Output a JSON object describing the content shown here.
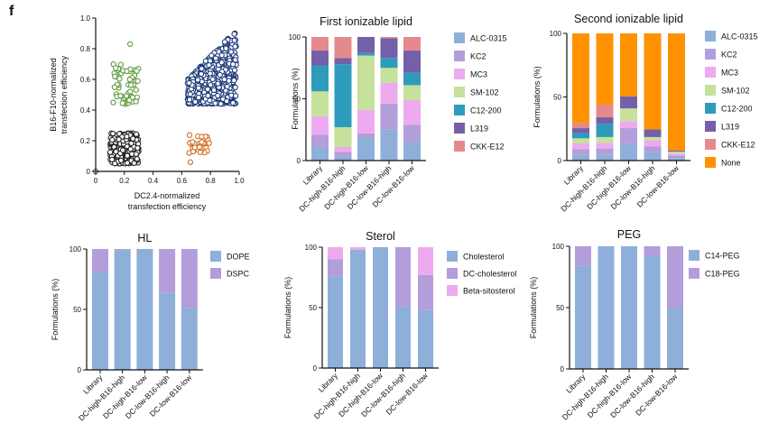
{
  "panel_label": "f",
  "colors": {
    "ALC-0315": "#8eafd9",
    "KC2": "#b39ddb",
    "MC3": "#eeaaee",
    "SM-102": "#c5e19a",
    "C12-200": "#2f9bbc",
    "L319": "#7460a8",
    "CKK-E12": "#e58a8c",
    "None": "#ff9200",
    "DOPE": "#8eafd9",
    "DSPC": "#b39ddb",
    "Cholesterol": "#8eafd9",
    "DC-cholesterol": "#b39ddb",
    "Beta-sitosterol": "#eeaaee",
    "C14-PEG": "#8eafd9",
    "C18-PEG": "#b39ddb",
    "scatter_dc_high_b16_high": "#1f3a7a",
    "scatter_dc_high_b16_low": "#d2691e",
    "scatter_dc_low_b16_high": "#5a9a3a",
    "scatter_dc_low_b16_low": "#222222"
  },
  "chart_data": [
    {
      "id": "scatter",
      "type": "scatter",
      "title": "",
      "xlabel": [
        "DC2.4-normalized",
        "transfection efficiency"
      ],
      "ylabel": [
        "B16-F10-normalized",
        "transfection efficiency"
      ],
      "xlim": [
        0,
        1.0
      ],
      "ylim": [
        0,
        1.0
      ],
      "xticks": [
        "0",
        "0.2",
        "0.4",
        "0.6",
        "0.8",
        "1.0"
      ],
      "yticks": [
        "0",
        "0.2",
        "0.4",
        "0.6",
        "0.8",
        "1.0"
      ],
      "clusters": [
        {
          "name": "DC-low-B16-low",
          "x_range": [
            0.1,
            0.3
          ],
          "y_range": [
            0.05,
            0.25
          ],
          "count": 260,
          "color_key": "scatter_dc_low_b16_low"
        },
        {
          "name": "DC-low-B16-high",
          "x_range": [
            0.12,
            0.3
          ],
          "y_range": [
            0.44,
            0.7
          ],
          "count": 55,
          "color_key": "scatter_dc_low_b16_high",
          "outliers": [
            [
              0.24,
              0.83
            ]
          ]
        },
        {
          "name": "DC-high-B16-low",
          "x_range": [
            0.65,
            0.8
          ],
          "y_range": [
            0.12,
            0.24
          ],
          "count": 28,
          "color_key": "scatter_dc_high_b16_low",
          "outliers": [
            [
              0.66,
              0.06
            ],
            [
              0.68,
              0.13
            ]
          ]
        },
        {
          "name": "DC-high-B16-high",
          "x_range": [
            0.64,
            0.98
          ],
          "y_range": [
            0.44,
            0.92
          ],
          "count": 650,
          "color_key": "scatter_dc_high_b16_high"
        }
      ],
      "extra_points": [
        [
          0,
          0
        ]
      ]
    },
    {
      "id": "first",
      "type": "bar",
      "stacked": true,
      "title": "First ionizable lipid",
      "ylabel": "Formulations (%)",
      "ylim": [
        0,
        100
      ],
      "yticks": [
        "0",
        "50",
        "100"
      ],
      "categories": [
        "Library",
        "DC-high-B16-high",
        "DC-high-B16-low",
        "DC-low-B16-high",
        "DC-low-B16-low"
      ],
      "series": [
        {
          "name": "ALC-0315",
          "values": [
            11,
            3,
            19,
            25,
            15
          ]
        },
        {
          "name": "KC2",
          "values": [
            10,
            4,
            3,
            21,
            14
          ]
        },
        {
          "name": "MC3",
          "values": [
            15,
            4,
            19,
            17,
            20
          ]
        },
        {
          "name": "SM-102",
          "values": [
            20,
            16,
            44,
            12,
            12
          ]
        },
        {
          "name": "C12-200",
          "values": [
            21,
            51,
            2,
            8,
            10
          ]
        },
        {
          "name": "L319",
          "values": [
            12,
            5,
            13,
            16,
            18
          ]
        },
        {
          "name": "CKK-E12",
          "values": [
            11,
            17,
            0,
            1,
            11
          ]
        }
      ],
      "legend": "right"
    },
    {
      "id": "second",
      "type": "bar",
      "stacked": true,
      "title": "Second ionizable lipid",
      "ylabel": "Formulations (%)",
      "ylim": [
        0,
        100
      ],
      "yticks": [
        "0",
        "50",
        "100"
      ],
      "categories": [
        "Library",
        "DC-high-B16-high",
        "DC-high-B16-low",
        "DC-low-B16-high",
        "DC-low-B16-low"
      ],
      "series": [
        {
          "name": "ALC-0315",
          "values": [
            4.5,
            4.5,
            13,
            6.5,
            2
          ]
        },
        {
          "name": "KC2",
          "values": [
            4.5,
            5,
            12.5,
            4.5,
            2
          ]
        },
        {
          "name": "MC3",
          "values": [
            4.5,
            4.5,
            5.5,
            5,
            1.5
          ]
        },
        {
          "name": "SM-102",
          "values": [
            4,
            4.5,
            10,
            2.5,
            1.5
          ]
        },
        {
          "name": "C12-200",
          "values": [
            4,
            10.5,
            0,
            0,
            0
          ]
        },
        {
          "name": "L319",
          "values": [
            4,
            5,
            9.5,
            6,
            1
          ]
        },
        {
          "name": "CKK-E12",
          "values": [
            4,
            10,
            0,
            0,
            0
          ]
        },
        {
          "name": "None",
          "values": [
            70.5,
            56,
            49.5,
            75.5,
            92
          ]
        }
      ],
      "legend": "right"
    },
    {
      "id": "hl",
      "type": "bar",
      "stacked": true,
      "title": "HL",
      "ylabel": "Formulations (%)",
      "ylim": [
        0,
        100
      ],
      "yticks": [
        "0",
        "50",
        "100"
      ],
      "categories": [
        "Library",
        "DC-high-B16-high",
        "DC-high-B16-low",
        "DC-low-B16-high",
        "DC-low-B16-low"
      ],
      "series": [
        {
          "name": "DOPE",
          "values": [
            81,
            99,
            100,
            64,
            51
          ]
        },
        {
          "name": "DSPC",
          "values": [
            19,
            1,
            0,
            36,
            49
          ]
        }
      ],
      "legend": "right"
    },
    {
      "id": "sterol",
      "type": "bar",
      "stacked": true,
      "title": "Sterol",
      "ylabel": "Formulations (%)",
      "ylim": [
        0,
        100
      ],
      "yticks": [
        "0",
        "50",
        "100"
      ],
      "categories": [
        "Library",
        "DC-high-B16-high",
        "DC-high-B16-low",
        "DC-low-B16-high",
        "DC-low-B16-low"
      ],
      "series": [
        {
          "name": "Cholesterol",
          "values": [
            76,
            98,
            100,
            51,
            48
          ]
        },
        {
          "name": "DC-cholesterol",
          "values": [
            14,
            0,
            0,
            49,
            29
          ]
        },
        {
          "name": "Beta-sitosterol",
          "values": [
            10,
            2,
            0,
            0,
            23
          ]
        }
      ],
      "legend": "right"
    },
    {
      "id": "peg",
      "type": "bar",
      "stacked": true,
      "title": "PEG",
      "ylabel": "Formulations (%)",
      "ylim": [
        0,
        100
      ],
      "yticks": [
        "0",
        "50",
        "100"
      ],
      "categories": [
        "Library",
        "DC-high-B16-high",
        "DC-high-B16-low",
        "DC-low-B16-high",
        "DC-low-B16-low"
      ],
      "series": [
        {
          "name": "C14-PEG",
          "values": [
            84,
            100,
            100,
            92,
            50
          ]
        },
        {
          "name": "C18-PEG",
          "values": [
            16,
            0,
            0,
            8,
            50
          ]
        }
      ],
      "legend": "right"
    }
  ]
}
